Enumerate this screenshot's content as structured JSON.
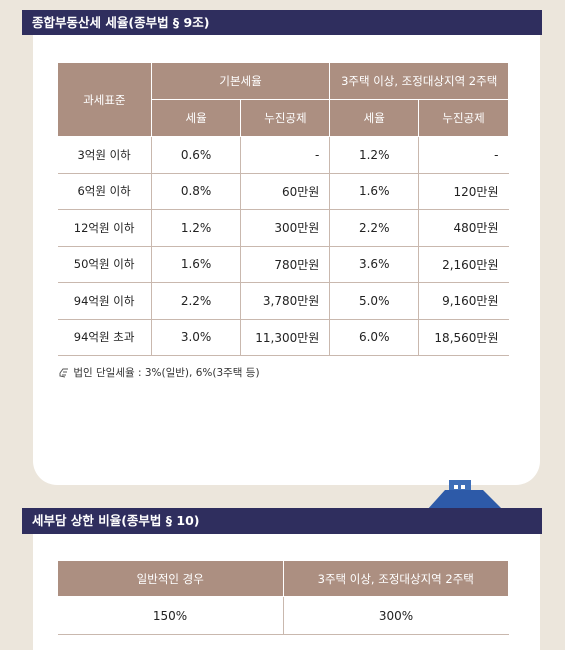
{
  "section1": {
    "title": "종합부동산세 세율(종부법 § 9조)",
    "table": {
      "header": {
        "base": "과세표준",
        "group1": "기본세율",
        "group2": "3주택 이상, 조정대상지역 2주택",
        "sub": [
          "세율",
          "누진공제",
          "세율",
          "누진공제"
        ]
      },
      "rows": [
        [
          "3억원 이하",
          "0.6%",
          "-",
          "1.2%",
          "-"
        ],
        [
          "6억원 이하",
          "0.8%",
          "60만원",
          "1.6%",
          "120만원"
        ],
        [
          "12억원 이하",
          "1.2%",
          "300만원",
          "2.2%",
          "480만원"
        ],
        [
          "50억원 이하",
          "1.6%",
          "780만원",
          "3.6%",
          "2,160만원"
        ],
        [
          "94억원 이하",
          "2.2%",
          "3,780만원",
          "5.0%",
          "9,160만원"
        ],
        [
          "94억원 초과",
          "3.0%",
          "11,300만원",
          "6.0%",
          "18,560만원"
        ]
      ]
    },
    "note": "법인 단일세율 : 3%(일반), 6%(3주택 등)"
  },
  "section2": {
    "title": "세부담 상한 비율(종부법 § 10)",
    "table": {
      "header": [
        "일반적인 경우",
        "3주택 이상, 조정대상지역 2주택"
      ],
      "rows": [
        [
          "150%",
          "300%"
        ]
      ]
    }
  }
}
